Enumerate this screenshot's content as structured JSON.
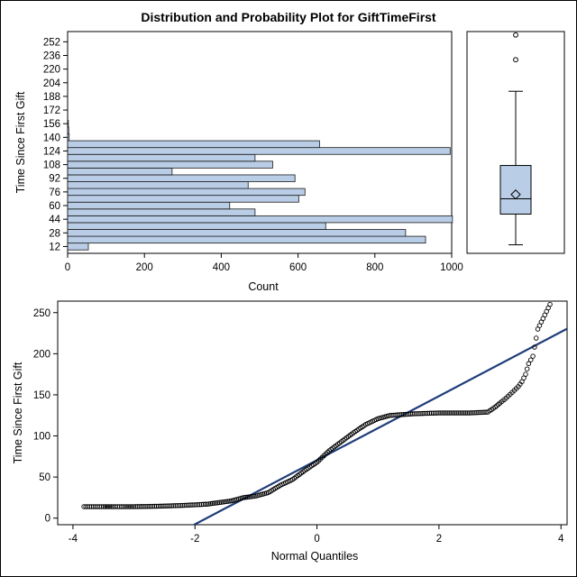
{
  "title": "Distribution and Probability Plot for GiftTimeFirst",
  "colors": {
    "bar_fill": "#b9cde6",
    "bar_edge": "#1a1a1a",
    "ref_line": "#1f3d7a",
    "marker": "#000000",
    "frame": "#000000"
  },
  "chart_data": [
    {
      "type": "bar",
      "orientation": "horizontal",
      "title": "Distribution and Probability Plot for GiftTimeFirst",
      "xlabel": "Count",
      "ylabel": "Time Since First Gift",
      "xlim": [
        0,
        1000
      ],
      "xticks": [
        0,
        200,
        400,
        600,
        800,
        1000
      ],
      "ytick_labels": [
        12,
        28,
        44,
        60,
        76,
        92,
        108,
        124,
        140,
        156,
        172,
        188,
        204,
        220,
        236,
        252
      ],
      "categories": [
        12,
        20,
        28,
        36,
        44,
        52,
        60,
        68,
        76,
        84,
        92,
        100,
        108,
        116,
        124,
        132,
        140,
        148,
        156
      ],
      "values": [
        54,
        932,
        880,
        672,
        1002,
        488,
        422,
        602,
        618,
        470,
        592,
        272,
        534,
        488,
        996,
        656,
        4,
        3,
        2
      ],
      "grid": false
    },
    {
      "type": "box",
      "orientation": "vertical",
      "min": 14,
      "q1": 50,
      "median": 68,
      "q3": 107,
      "mean": 73,
      "whisker_high": 194,
      "outliers": [
        231,
        260
      ]
    },
    {
      "type": "scatter",
      "subtype": "normal-probability-plot",
      "xlabel": "Normal Quantiles",
      "ylabel": "Time Since First Gift",
      "xlim": [
        -4,
        4
      ],
      "ylim": [
        0,
        260
      ],
      "xticks": [
        -4,
        -2,
        0,
        2,
        4
      ],
      "yticks": [
        0,
        50,
        100,
        150,
        200,
        250
      ],
      "reference_line": {
        "intercept": 70.5,
        "slope": 39.0
      },
      "points": [
        [
          -3.82,
          14
        ],
        [
          -3.6,
          14
        ],
        [
          -3.5,
          14
        ],
        [
          -3.42,
          14
        ],
        [
          -3.34,
          14
        ],
        [
          -3.27,
          14
        ],
        [
          -3.2,
          14
        ],
        [
          -3.14,
          14
        ],
        [
          -3.0,
          14
        ],
        [
          -2.6,
          14.5
        ],
        [
          -2.2,
          15.5
        ],
        [
          -1.8,
          17
        ],
        [
          -1.6,
          19
        ],
        [
          -1.4,
          21
        ],
        [
          -1.2,
          25
        ],
        [
          -1.0,
          27
        ],
        [
          -0.8,
          31
        ],
        [
          -0.6,
          40
        ],
        [
          -0.4,
          47
        ],
        [
          -0.2,
          58
        ],
        [
          0.0,
          68
        ],
        [
          0.2,
          82
        ],
        [
          0.4,
          93
        ],
        [
          0.6,
          104
        ],
        [
          0.8,
          114
        ],
        [
          1.0,
          121
        ],
        [
          1.2,
          125
        ],
        [
          1.6,
          127
        ],
        [
          2.0,
          128
        ],
        [
          2.5,
          128
        ],
        [
          2.8,
          129
        ],
        [
          2.92,
          135
        ],
        [
          3.0,
          140
        ],
        [
          3.1,
          146
        ],
        [
          3.2,
          153
        ],
        [
          3.3,
          160
        ],
        [
          3.36,
          166
        ],
        [
          3.42,
          175
        ],
        [
          3.47,
          188
        ],
        [
          3.54,
          197
        ],
        [
          3.62,
          230
        ],
        [
          3.82,
          260
        ]
      ]
    }
  ]
}
